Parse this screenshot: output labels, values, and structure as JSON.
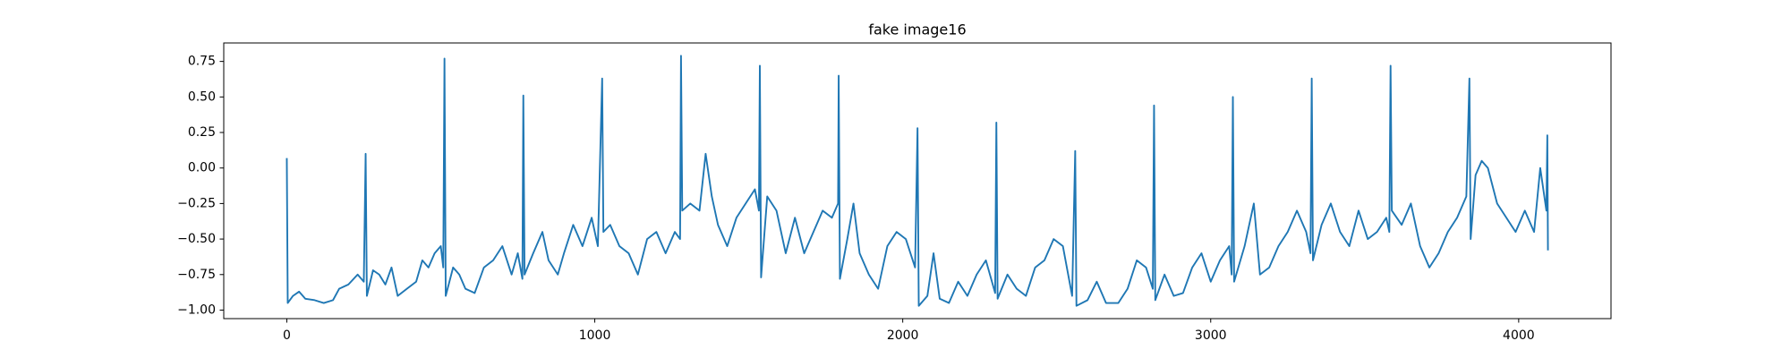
{
  "chart_data": {
    "type": "line",
    "title": "fake image16",
    "color": "#1f77b4",
    "x": [
      0,
      3,
      20,
      40,
      60,
      90,
      120,
      150,
      170,
      200,
      230,
      250,
      256,
      260,
      280,
      300,
      320,
      340,
      360,
      390,
      420,
      440,
      460,
      480,
      500,
      508,
      512,
      516,
      540,
      560,
      580,
      610,
      640,
      670,
      700,
      730,
      750,
      765,
      768,
      772,
      800,
      830,
      850,
      880,
      900,
      930,
      960,
      990,
      1010,
      1024,
      1028,
      1050,
      1080,
      1110,
      1140,
      1170,
      1200,
      1230,
      1260,
      1277,
      1280,
      1284,
      1310,
      1340,
      1360,
      1380,
      1400,
      1430,
      1460,
      1490,
      1520,
      1533,
      1536,
      1540,
      1560,
      1590,
      1620,
      1650,
      1680,
      1710,
      1740,
      1770,
      1790,
      1792,
      1796,
      1820,
      1840,
      1860,
      1890,
      1920,
      1950,
      1980,
      2010,
      2040,
      2048,
      2052,
      2080,
      2100,
      2120,
      2150,
      2180,
      2210,
      2240,
      2270,
      2300,
      2304,
      2308,
      2340,
      2370,
      2400,
      2430,
      2460,
      2490,
      2520,
      2550,
      2560,
      2564,
      2600,
      2630,
      2660,
      2700,
      2730,
      2760,
      2790,
      2812,
      2816,
      2820,
      2850,
      2880,
      2910,
      2940,
      2970,
      3000,
      3030,
      3060,
      3068,
      3072,
      3076,
      3110,
      3140,
      3160,
      3190,
      3220,
      3250,
      3280,
      3310,
      3324,
      3328,
      3332,
      3360,
      3390,
      3420,
      3450,
      3480,
      3510,
      3540,
      3570,
      3580,
      3584,
      3588,
      3620,
      3650,
      3680,
      3710,
      3740,
      3770,
      3800,
      3830,
      3840,
      3844,
      3860,
      3880,
      3900,
      3930,
      3960,
      3990,
      4020,
      4050,
      4070,
      4090,
      4093,
      4095
    ],
    "values": [
      0.07,
      -0.95,
      -0.9,
      -0.87,
      -0.92,
      -0.93,
      -0.95,
      -0.93,
      -0.85,
      -0.82,
      -0.75,
      -0.8,
      0.1,
      -0.9,
      -0.72,
      -0.75,
      -0.82,
      -0.7,
      -0.9,
      -0.85,
      -0.8,
      -0.65,
      -0.7,
      -0.6,
      -0.55,
      -0.7,
      0.77,
      -0.9,
      -0.7,
      -0.75,
      -0.85,
      -0.88,
      -0.7,
      -0.65,
      -0.55,
      -0.75,
      -0.6,
      -0.78,
      0.51,
      -0.75,
      -0.6,
      -0.45,
      -0.65,
      -0.75,
      -0.6,
      -0.4,
      -0.55,
      -0.35,
      -0.55,
      0.63,
      -0.45,
      -0.4,
      -0.55,
      -0.6,
      -0.75,
      -0.5,
      -0.45,
      -0.6,
      -0.45,
      -0.5,
      0.79,
      -0.3,
      -0.25,
      -0.3,
      0.1,
      -0.2,
      -0.4,
      -0.55,
      -0.35,
      -0.25,
      -0.15,
      -0.3,
      0.72,
      -0.77,
      -0.2,
      -0.3,
      -0.6,
      -0.35,
      -0.6,
      -0.45,
      -0.3,
      -0.35,
      -0.25,
      0.65,
      -0.78,
      -0.5,
      -0.25,
      -0.6,
      -0.75,
      -0.85,
      -0.55,
      -0.45,
      -0.5,
      -0.7,
      0.28,
      -0.97,
      -0.9,
      -0.6,
      -0.92,
      -0.95,
      -0.8,
      -0.9,
      -0.75,
      -0.65,
      -0.88,
      0.32,
      -0.92,
      -0.75,
      -0.85,
      -0.9,
      -0.7,
      -0.65,
      -0.5,
      -0.55,
      -0.9,
      0.12,
      -0.97,
      -0.93,
      -0.8,
      -0.95,
      -0.95,
      -0.85,
      -0.65,
      -0.7,
      -0.85,
      0.44,
      -0.93,
      -0.75,
      -0.9,
      -0.88,
      -0.7,
      -0.6,
      -0.8,
      -0.65,
      -0.55,
      -0.75,
      0.5,
      -0.8,
      -0.55,
      -0.25,
      -0.75,
      -0.7,
      -0.55,
      -0.45,
      -0.3,
      -0.45,
      -0.6,
      0.63,
      -0.65,
      -0.4,
      -0.25,
      -0.45,
      -0.55,
      -0.3,
      -0.5,
      -0.45,
      -0.35,
      -0.45,
      0.72,
      -0.3,
      -0.4,
      -0.25,
      -0.55,
      -0.7,
      -0.6,
      -0.45,
      -0.35,
      -0.2,
      0.63,
      -0.5,
      -0.05,
      0.05,
      0.0,
      -0.25,
      -0.35,
      -0.45,
      -0.3,
      -0.45,
      0.0,
      -0.3,
      0.23,
      -0.58
    ],
    "xlim": [
      -204.75,
      4299.75
    ],
    "ylim": [
      -1.06,
      0.88
    ],
    "xticks": [
      0,
      1000,
      2000,
      3000,
      4000
    ],
    "yticks": [
      {
        "value": -1.0,
        "label": "−1.00"
      },
      {
        "value": -0.75,
        "label": "−0.75"
      },
      {
        "value": -0.5,
        "label": "−0.50"
      },
      {
        "value": -0.25,
        "label": "−0.25"
      },
      {
        "value": 0,
        "label": "0.00"
      },
      {
        "value": 0.25,
        "label": "0.25"
      },
      {
        "value": 0.5,
        "label": "0.50"
      },
      {
        "value": 0.75,
        "label": "0.75"
      }
    ],
    "grid": false
  }
}
